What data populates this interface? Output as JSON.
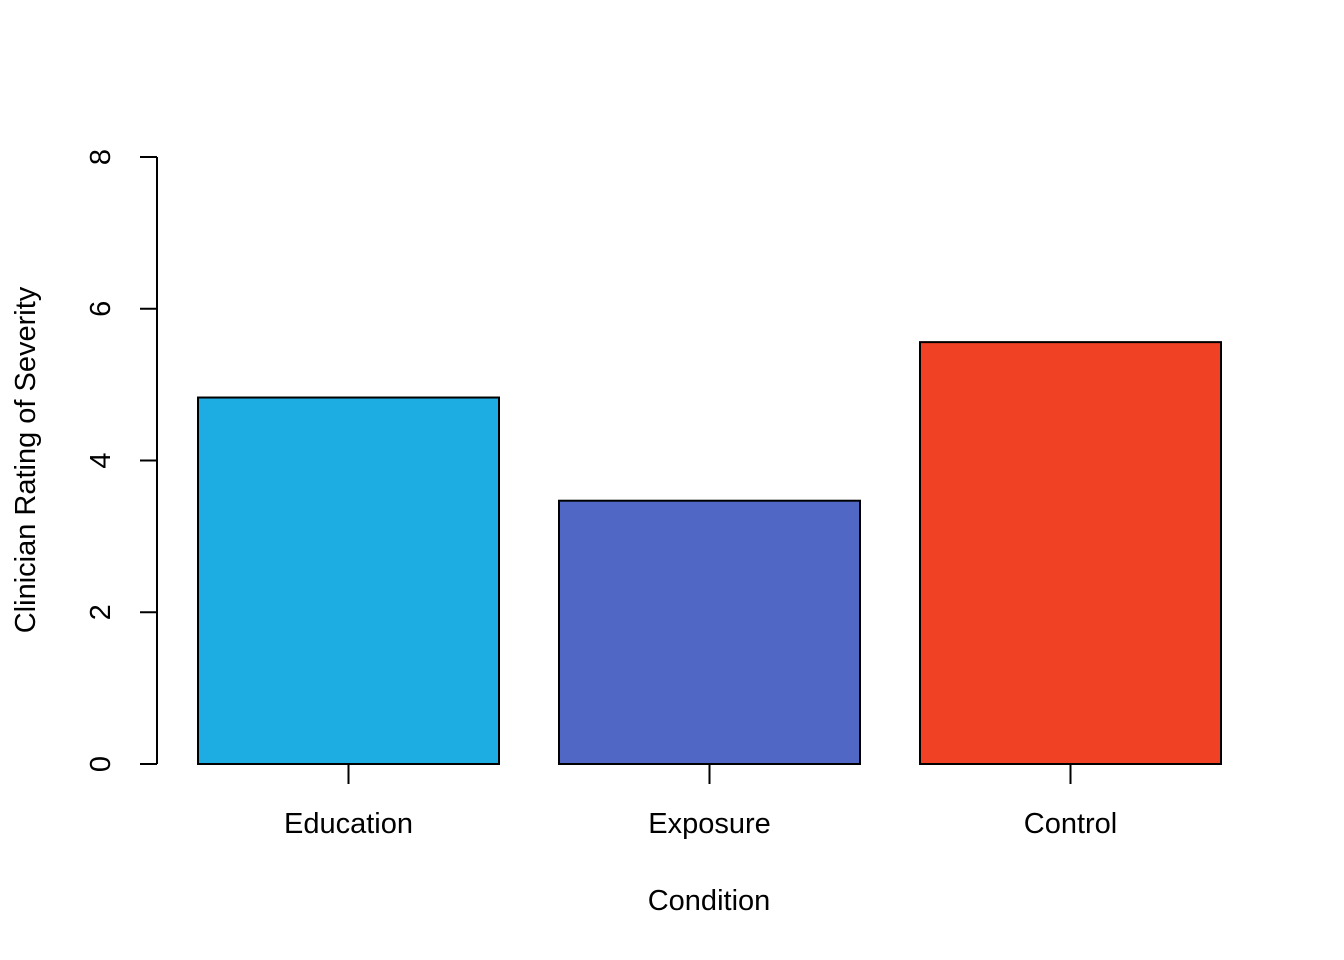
{
  "chart_data": {
    "type": "bar",
    "categories": [
      "Education",
      "Exposure",
      "Control"
    ],
    "values": [
      4.83,
      3.47,
      5.56
    ],
    "colors": [
      "#1EADE3",
      "#5067C6",
      "#F04124"
    ],
    "title": "",
    "xlabel": "Condition",
    "ylabel": "Clinician Rating of Severity",
    "ylim": [
      0,
      8
    ],
    "yticks": [
      0,
      2,
      4,
      6,
      8
    ],
    "grid": false,
    "legend": "none"
  }
}
